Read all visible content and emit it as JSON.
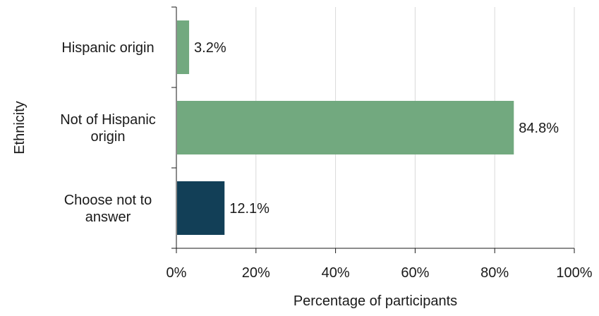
{
  "chart_data": {
    "type": "bar",
    "orientation": "horizontal",
    "categories": [
      [
        "Hispanic origin"
      ],
      [
        "Not of Hispanic",
        "origin"
      ],
      [
        "Choose not to",
        "answer"
      ]
    ],
    "values": [
      3.2,
      84.8,
      12.1
    ],
    "data_labels": [
      "3.2%",
      "84.8%",
      "12.1%"
    ],
    "bar_colors": [
      "#72a97f",
      "#72a97f",
      "#123f57"
    ],
    "xlabel": "Percentage of participants",
    "ylabel": "Ethnicity",
    "xlim": [
      0,
      100
    ],
    "x_ticks": [
      0,
      20,
      40,
      60,
      80,
      100
    ],
    "x_tick_labels": [
      "0%",
      "20%",
      "40%",
      "60%",
      "80%",
      "100%"
    ],
    "grid": "vertical",
    "legend": "none"
  }
}
